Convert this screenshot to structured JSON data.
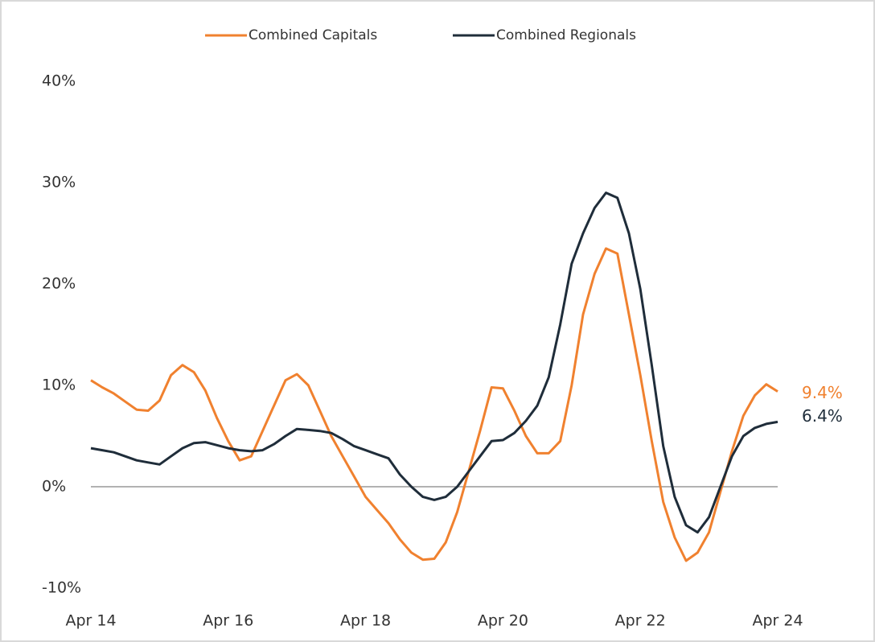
{
  "chart_data": {
    "type": "line",
    "categories": [
      "Apr 14",
      null,
      null,
      null,
      null,
      null,
      null,
      null,
      null,
      null,
      null,
      null,
      "Apr 16",
      null,
      null,
      null,
      null,
      null,
      null,
      null,
      null,
      null,
      null,
      null,
      "Apr 18",
      null,
      null,
      null,
      null,
      null,
      null,
      null,
      null,
      null,
      null,
      null,
      "Apr 20",
      null,
      null,
      null,
      null,
      null,
      null,
      null,
      null,
      null,
      null,
      null,
      "Apr 22",
      null,
      null,
      null,
      null,
      null,
      null,
      null,
      null,
      null,
      null,
      null,
      "Apr 24"
    ],
    "series": [
      {
        "name": "Combined Capitals",
        "color": "#f0812f",
        "values": [
          10.5,
          9.8,
          9.2,
          8.4,
          7.6,
          7.5,
          8.5,
          11.0,
          12.0,
          11.3,
          9.5,
          6.8,
          4.5,
          2.6,
          3.0,
          5.5,
          8.0,
          10.5,
          11.1,
          10.0,
          7.5,
          5.0,
          3.0,
          1.0,
          -1.0,
          -2.3,
          -3.6,
          -5.2,
          -6.5,
          -7.2,
          -7.1,
          -5.5,
          -2.5,
          1.5,
          5.5,
          9.8,
          9.7,
          7.5,
          5.0,
          3.3,
          3.3,
          4.5,
          10.0,
          17.0,
          21.0,
          23.5,
          23.0,
          17.0,
          11.0,
          4.5,
          -1.5,
          -5.0,
          -7.3,
          -6.5,
          -4.5,
          -0.5,
          3.5,
          7.0,
          9.0,
          10.1,
          9.4
        ],
        "value_labels": [
          null,
          null,
          null,
          null,
          null,
          null,
          null,
          null,
          null,
          null,
          null,
          null,
          null,
          null,
          null,
          null,
          null,
          null,
          null,
          null,
          null,
          null,
          null,
          null,
          null,
          null,
          null,
          null,
          null,
          null,
          null,
          null,
          null,
          null,
          null,
          null,
          null,
          null,
          null,
          null,
          null,
          null,
          null,
          null,
          null,
          null,
          null,
          null,
          null,
          null,
          null,
          null,
          null,
          null,
          null,
          null,
          null,
          null,
          null,
          null,
          "9.4%"
        ]
      },
      {
        "name": "Combined Regionals",
        "color": "#1f2d3a",
        "values": [
          3.8,
          3.6,
          3.4,
          3.0,
          2.6,
          2.4,
          2.2,
          3.0,
          3.8,
          4.3,
          4.4,
          4.1,
          3.8,
          3.6,
          3.5,
          3.6,
          4.2,
          5.0,
          5.7,
          5.6,
          5.5,
          5.3,
          4.7,
          4.0,
          3.6,
          3.2,
          2.8,
          1.2,
          0.0,
          -1.0,
          -1.3,
          -1.0,
          0.0,
          1.5,
          3.0,
          4.5,
          4.6,
          5.3,
          6.5,
          8.0,
          10.8,
          16.0,
          22.0,
          25.0,
          27.5,
          29.0,
          28.5,
          25.0,
          19.5,
          12.0,
          4.0,
          -1.0,
          -3.8,
          -4.5,
          -3.0,
          0.0,
          3.0,
          5.0,
          5.8,
          6.2,
          6.4
        ],
        "value_labels": [
          null,
          null,
          null,
          null,
          null,
          null,
          null,
          null,
          null,
          null,
          null,
          null,
          null,
          null,
          null,
          null,
          null,
          null,
          null,
          null,
          null,
          null,
          null,
          null,
          null,
          null,
          null,
          null,
          null,
          null,
          null,
          null,
          null,
          null,
          null,
          null,
          null,
          null,
          null,
          null,
          null,
          null,
          null,
          null,
          null,
          null,
          null,
          null,
          null,
          null,
          null,
          null,
          null,
          null,
          null,
          null,
          null,
          null,
          null,
          null,
          "6.4%"
        ]
      }
    ],
    "ylim": [
      -10,
      40
    ],
    "yticks": [
      {
        "value": -10,
        "label": "-10%"
      },
      {
        "value": 0,
        "label": "0%"
      },
      {
        "value": 10,
        "label": "10%"
      },
      {
        "value": 20,
        "label": "20%"
      },
      {
        "value": 30,
        "label": "30%"
      },
      {
        "value": 40,
        "label": "40%"
      }
    ],
    "grid": false,
    "zero_line": true,
    "legend": "top"
  }
}
